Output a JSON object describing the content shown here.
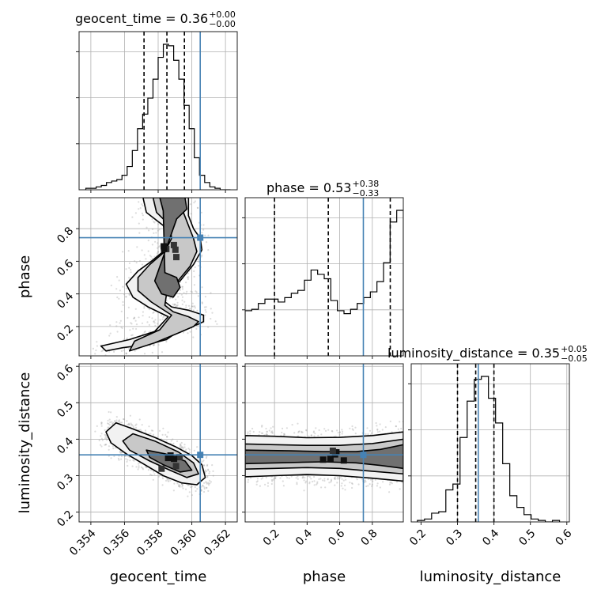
{
  "chart_data": {
    "type": "corner",
    "parameters": [
      "geocent_time",
      "phase",
      "luminosity_distance"
    ],
    "axis_labels": {
      "x": [
        "geocent_time",
        "phase",
        "luminosity_distance"
      ],
      "y": [
        "phase",
        "luminosity_distance"
      ]
    },
    "ranges": {
      "geocent_time": [
        0.3533,
        0.3627
      ],
      "phase": [
        0.02,
        0.99
      ],
      "luminosity_distance": [
        0.173,
        0.607
      ]
    },
    "ticks": {
      "geocent_time": [
        "0.354",
        "0.356",
        "0.358",
        "0.360",
        "0.362"
      ],
      "phase": [
        "0.2",
        "0.4",
        "0.6",
        "0.8"
      ],
      "luminosity_distance": [
        "0.2",
        "0.3",
        "0.4",
        "0.5",
        "0.6"
      ]
    },
    "truth": {
      "geocent_time": 0.3605,
      "phase": 0.745,
      "luminosity_distance": 0.357
    },
    "truth_color": "#4682b4",
    "grid": true,
    "titles": [
      {
        "param": "geocent_time",
        "prefix": "geocent_time = ",
        "median": "0.36",
        "plus": "+0.00",
        "minus": "−0.00"
      },
      {
        "param": "phase",
        "prefix": "phase = ",
        "median": "0.53",
        "plus": "+0.38",
        "minus": "−0.33"
      },
      {
        "param": "luminosity_distance",
        "prefix": "luminosity_distance = ",
        "median": "0.35",
        "plus": "+0.05",
        "minus": "−0.05"
      }
    ],
    "quantiles": {
      "geocent_time": [
        0.35716,
        0.35852,
        0.35956
      ],
      "phase": [
        0.2,
        0.53,
        0.91
      ],
      "luminosity_distance": [
        0.3,
        0.35,
        0.4
      ]
    },
    "histograms": {
      "geocent_time": {
        "edges": [
          0.3537,
          0.3623
        ],
        "counts": [
          1,
          1,
          2,
          3,
          5,
          6,
          7,
          10,
          16,
          27,
          42,
          52,
          63,
          76,
          91,
          100,
          99,
          89,
          76,
          58,
          42,
          22,
          10,
          5,
          2,
          1,
          0,
          0
        ]
      },
      "phase": {
        "edges": [
          0.02,
          0.99
        ],
        "counts": [
          31,
          32,
          36,
          39,
          39,
          37,
          40,
          43,
          45,
          52,
          59,
          56,
          53,
          38,
          31,
          29,
          32,
          36,
          40,
          44,
          51,
          64,
          92,
          100
        ]
      },
      "luminosity_distance": {
        "edges": [
          0.19,
          0.58
        ],
        "counts": [
          1,
          2,
          6,
          7,
          22,
          26,
          58,
          83,
          98,
          100,
          85,
          68,
          40,
          18,
          10,
          5,
          2,
          1,
          0,
          1
        ]
      }
    },
    "contour_2d": {
      "geocent_time_vs_phase": {
        "outer": [
          [
            0.3549,
            0.05
          ],
          [
            0.3559,
            0.07
          ],
          [
            0.3574,
            0.09
          ],
          [
            0.3585,
            0.12
          ],
          [
            0.3592,
            0.17
          ],
          [
            0.3597,
            0.2
          ],
          [
            0.3603,
            0.21
          ],
          [
            0.3607,
            0.23
          ],
          [
            0.3607,
            0.27
          ],
          [
            0.3598,
            0.3
          ],
          [
            0.3588,
            0.32
          ],
          [
            0.3583,
            0.36
          ],
          [
            0.3586,
            0.42
          ],
          [
            0.3593,
            0.48
          ],
          [
            0.3601,
            0.58
          ],
          [
            0.3606,
            0.67
          ],
          [
            0.3605,
            0.74
          ],
          [
            0.3601,
            0.8
          ],
          [
            0.3598,
            0.88
          ],
          [
            0.3598,
            0.99
          ],
          [
            0.3571,
            0.99
          ],
          [
            0.3573,
            0.9
          ],
          [
            0.3583,
            0.82
          ],
          [
            0.3586,
            0.73
          ],
          [
            0.3583,
            0.66
          ],
          [
            0.3576,
            0.6
          ],
          [
            0.3568,
            0.54
          ],
          [
            0.3561,
            0.46
          ],
          [
            0.3565,
            0.38
          ],
          [
            0.3574,
            0.32
          ],
          [
            0.3586,
            0.26
          ],
          [
            0.3578,
            0.17
          ],
          [
            0.3563,
            0.12
          ],
          [
            0.3546,
            0.08
          ]
        ],
        "middle": [
          [
            0.3563,
            0.05
          ],
          [
            0.3578,
            0.1
          ],
          [
            0.3592,
            0.16
          ],
          [
            0.3601,
            0.2
          ],
          [
            0.3604,
            0.23
          ],
          [
            0.3598,
            0.26
          ],
          [
            0.3589,
            0.29
          ],
          [
            0.3584,
            0.33
          ],
          [
            0.3585,
            0.4
          ],
          [
            0.3591,
            0.47
          ],
          [
            0.3599,
            0.57
          ],
          [
            0.3603,
            0.66
          ],
          [
            0.3601,
            0.74
          ],
          [
            0.3598,
            0.82
          ],
          [
            0.3595,
            0.9
          ],
          [
            0.3595,
            0.99
          ],
          [
            0.3577,
            0.99
          ],
          [
            0.3579,
            0.9
          ],
          [
            0.3587,
            0.82
          ],
          [
            0.3588,
            0.74
          ],
          [
            0.3584,
            0.66
          ],
          [
            0.3575,
            0.58
          ],
          [
            0.3568,
            0.5
          ],
          [
            0.3568,
            0.42
          ],
          [
            0.3576,
            0.35
          ],
          [
            0.3588,
            0.27
          ],
          [
            0.3581,
            0.18
          ],
          [
            0.3566,
            0.11
          ]
        ],
        "inner": [
          [
            0.3584,
            0.53
          ],
          [
            0.3591,
            0.5
          ],
          [
            0.3593,
            0.44
          ],
          [
            0.3589,
            0.38
          ],
          [
            0.3582,
            0.4
          ],
          [
            0.3578,
            0.48
          ],
          [
            0.3591,
            0.86
          ],
          [
            0.3597,
            0.92
          ],
          [
            0.3596,
            0.99
          ],
          [
            0.3581,
            0.99
          ],
          [
            0.3583,
            0.91
          ]
        ]
      },
      "geocent_time_vs_luminosity_distance": {
        "outer": [
          [
            0.3555,
            0.445
          ],
          [
            0.3564,
            0.43
          ],
          [
            0.3578,
            0.405
          ],
          [
            0.359,
            0.38
          ],
          [
            0.36,
            0.355
          ],
          [
            0.3606,
            0.33
          ],
          [
            0.3608,
            0.295
          ],
          [
            0.3603,
            0.275
          ],
          [
            0.3594,
            0.28
          ],
          [
            0.3583,
            0.3
          ],
          [
            0.3572,
            0.33
          ],
          [
            0.3561,
            0.36
          ],
          [
            0.3552,
            0.39
          ],
          [
            0.3549,
            0.42
          ]
        ],
        "middle": [
          [
            0.3565,
            0.415
          ],
          [
            0.3578,
            0.395
          ],
          [
            0.3592,
            0.365
          ],
          [
            0.3601,
            0.335
          ],
          [
            0.3604,
            0.305
          ],
          [
            0.3597,
            0.295
          ],
          [
            0.3587,
            0.315
          ],
          [
            0.3575,
            0.34
          ],
          [
            0.3563,
            0.37
          ],
          [
            0.3559,
            0.395
          ]
        ],
        "inner": [
          [
            0.3573,
            0.37
          ],
          [
            0.3584,
            0.36
          ],
          [
            0.3596,
            0.34
          ],
          [
            0.36,
            0.315
          ],
          [
            0.3593,
            0.31
          ],
          [
            0.3583,
            0.33
          ],
          [
            0.3575,
            0.35
          ]
        ]
      },
      "phase_vs_luminosity_distance": {
        "outer": [
          [
            0.02,
            0.41
          ],
          [
            0.2,
            0.408
          ],
          [
            0.4,
            0.404
          ],
          [
            0.6,
            0.405
          ],
          [
            0.8,
            0.41
          ],
          [
            0.99,
            0.42
          ],
          [
            0.99,
            0.285
          ],
          [
            0.8,
            0.293
          ],
          [
            0.6,
            0.3
          ],
          [
            0.4,
            0.303
          ],
          [
            0.2,
            0.3
          ],
          [
            0.02,
            0.297
          ]
        ],
        "middle": [
          [
            0.02,
            0.387
          ],
          [
            0.2,
            0.385
          ],
          [
            0.4,
            0.383
          ],
          [
            0.6,
            0.383
          ],
          [
            0.8,
            0.388
          ],
          [
            0.99,
            0.4
          ],
          [
            0.99,
            0.305
          ],
          [
            0.8,
            0.312
          ],
          [
            0.6,
            0.32
          ],
          [
            0.4,
            0.322
          ],
          [
            0.2,
            0.32
          ],
          [
            0.02,
            0.318
          ]
        ],
        "inner": [
          [
            0.02,
            0.37
          ],
          [
            0.3,
            0.368
          ],
          [
            0.5,
            0.366
          ],
          [
            0.7,
            0.366
          ],
          [
            0.85,
            0.372
          ],
          [
            0.99,
            0.385
          ],
          [
            0.99,
            0.32
          ],
          [
            0.85,
            0.328
          ],
          [
            0.7,
            0.335
          ],
          [
            0.5,
            0.338
          ],
          [
            0.3,
            0.336
          ],
          [
            0.02,
            0.333
          ]
        ]
      }
    }
  }
}
